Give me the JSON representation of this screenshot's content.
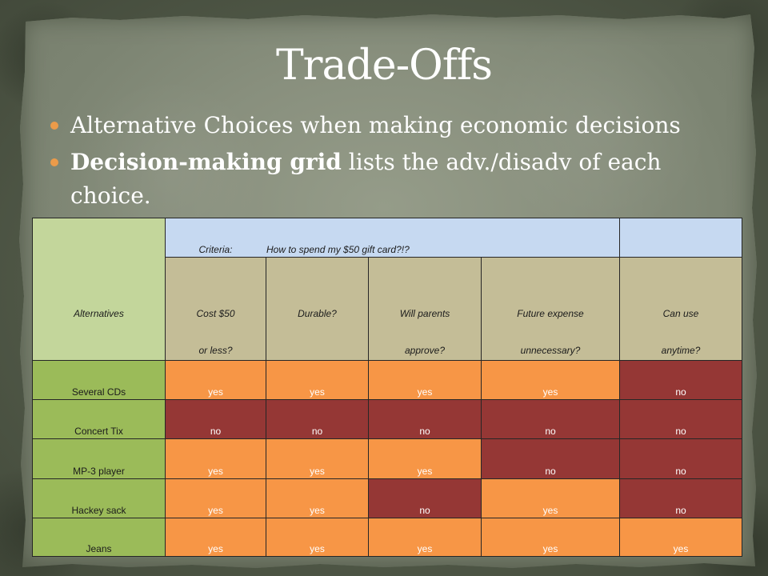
{
  "slide": {
    "title": "Trade-Offs",
    "bullets": [
      {
        "text": "Alternative Choices when making economic decisions"
      },
      {
        "bold": "Decision-making grid",
        "text": "lists the adv./disadv of each choice."
      }
    ]
  },
  "grid": {
    "alternatives_header": "Alternatives",
    "criteria_label": "Criteria:",
    "criteria_prompt": "How to spend my $50 gift card?!?",
    "criteria": [
      {
        "line1": "Cost $50",
        "line2": "or less?"
      },
      {
        "line1": "Durable?"
      },
      {
        "line1": "Will parents",
        "line2": "approve?"
      },
      {
        "line1": "Future expense",
        "line2": "unnecessary?"
      },
      {
        "line1": "Can use",
        "line2": "anytime?"
      }
    ],
    "rows": [
      {
        "alternative": "Several CDs",
        "values": [
          "yes",
          "yes",
          "yes",
          "yes",
          "no"
        ]
      },
      {
        "alternative": "Concert Tix",
        "values": [
          "no",
          "no",
          "no",
          "no",
          "no"
        ]
      },
      {
        "alternative": "MP-3 player",
        "values": [
          "yes",
          "yes",
          "yes",
          "no",
          "no"
        ]
      },
      {
        "alternative": "Hackey sack",
        "values": [
          "yes",
          "yes",
          "no",
          "yes",
          "no"
        ]
      },
      {
        "alternative": "Jeans",
        "values": [
          "yes",
          "yes",
          "yes",
          "yes",
          "yes"
        ]
      }
    ],
    "value_colors": {
      "yes": "#f79646",
      "no": "#953735"
    }
  },
  "colors": {
    "bullet": "#eb9b4a",
    "alternatives_header_bg": "#c3d69b",
    "criteria_prompt_bg": "#c6d9f1",
    "criteria_bg": "#c4bd97",
    "alternative_bg": "#9bbb59"
  }
}
